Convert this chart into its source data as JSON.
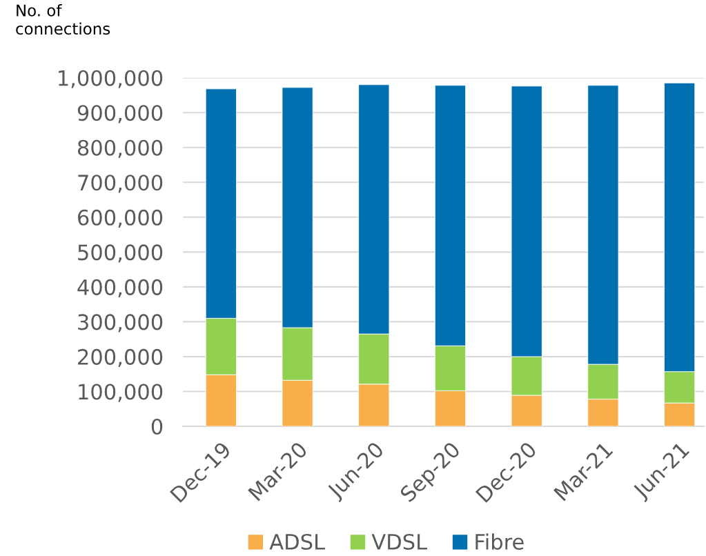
{
  "chart_data": {
    "type": "bar",
    "stacked": true,
    "ylabel": "No. of\nconnections",
    "categories": [
      "Dec-19",
      "Mar-20",
      "Jun-20",
      "Sep-20",
      "Dec-20",
      "Mar-21",
      "Jun-21"
    ],
    "series": [
      {
        "name": "ADSL",
        "color": "#f8ae4b",
        "values": [
          148000,
          132000,
          121000,
          102000,
          89000,
          78000,
          67000
        ]
      },
      {
        "name": "VDSL",
        "color": "#92d050",
        "values": [
          162000,
          151000,
          144000,
          129000,
          111000,
          100000,
          90000
        ]
      },
      {
        "name": "Fibre",
        "color": "#0070b0",
        "values": [
          658000,
          689000,
          715000,
          747000,
          776000,
          800000,
          828000
        ]
      }
    ],
    "ylim": [
      0,
      1000000
    ],
    "yticks": [
      {
        "value": 0,
        "label": "0"
      },
      {
        "value": 100000,
        "label": "100,000"
      },
      {
        "value": 200000,
        "label": "200,000"
      },
      {
        "value": 300000,
        "label": "300,000"
      },
      {
        "value": 400000,
        "label": "400,000"
      },
      {
        "value": 500000,
        "label": "500,000"
      },
      {
        "value": 600000,
        "label": "600,000"
      },
      {
        "value": 700000,
        "label": "700,000"
      },
      {
        "value": 800000,
        "label": "800,000"
      },
      {
        "value": 900000,
        "label": "900,000"
      },
      {
        "value": 1000000,
        "label": "1,000,000"
      }
    ],
    "grid": "y",
    "legend": "bottom"
  }
}
